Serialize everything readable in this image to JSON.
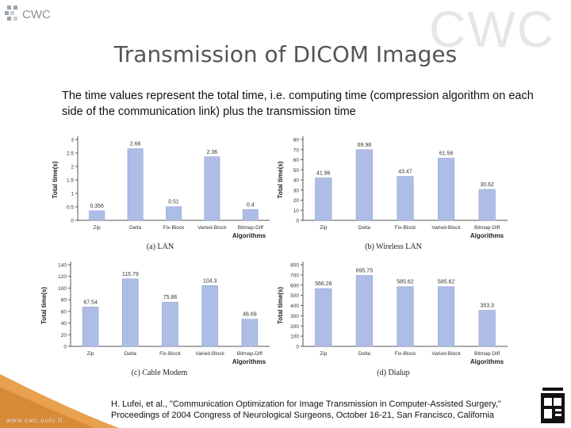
{
  "header": {
    "logo_text": "CWC",
    "watermark": "CWC",
    "title": "Transmission of DICOM Images",
    "subtitle": "The time values represent the total time, i.e. computing time (compression algorithm on each side of the communication link) plus the transmission time"
  },
  "footer": {
    "citation_line1": "H. Lufei, et al., \"Communication Optimization for Image Transmission in Computer-Assisted Surgery,\"",
    "citation_line2": "Proceedings of 2004 Congress of Neurological Surgeons, October 16-21, San Francisco, California",
    "site": "www.cwc.oulu.fi"
  },
  "colors": {
    "bar": "#aebde6",
    "bar_edge": "#8c9ccc",
    "axis": "#555555",
    "wave": "#e8a14f"
  },
  "chart_data": [
    {
      "type": "bar",
      "title": "(a) LAN",
      "xlabel": "Algorithms",
      "ylabel": "Total time(s)",
      "categories": [
        "Zip",
        "Delta",
        "Fix-Block",
        "Varied-Block",
        "Bitmap-Diff"
      ],
      "values": [
        0.356,
        2.66,
        0.51,
        2.36,
        0.4
      ],
      "value_labels": [
        "0.356",
        "2.66",
        "0.51",
        "2.36",
        "0.4"
      ],
      "ylim": [
        0,
        3
      ],
      "yticks": [
        "0",
        "0.5",
        "1",
        "1.5",
        "2",
        "2.5",
        "3"
      ],
      "grid": false
    },
    {
      "type": "bar",
      "title": "(b) Wireless LAN",
      "xlabel": "Algorithms",
      "ylabel": "Total time(s)",
      "categories": [
        "Zip",
        "Delta",
        "Fix-Block",
        "Varied-Block",
        "Bitmap-Diff"
      ],
      "values": [
        41.96,
        69.98,
        43.47,
        61.56,
        30.62
      ],
      "value_labels": [
        "41.96",
        "69.98",
        "43.47",
        "61.56",
        "30.62"
      ],
      "ylim": [
        0,
        80
      ],
      "yticks": [
        "0",
        "10",
        "20",
        "30",
        "40",
        "50",
        "60",
        "70",
        "80"
      ],
      "grid": false
    },
    {
      "type": "bar",
      "title": "(c) Cable Modem",
      "xlabel": "Algorithms",
      "ylabel": "Total time(s)",
      "categories": [
        "Zip",
        "Delta",
        "Fix-Block",
        "Varied-Block",
        "Bitmap-Diff"
      ],
      "values": [
        67.54,
        115.79,
        75.86,
        104.3,
        46.69
      ],
      "value_labels": [
        "67.54",
        "115.79",
        "75.86",
        "104.3",
        "46.69"
      ],
      "ylim": [
        0,
        140
      ],
      "yticks": [
        "0",
        "20",
        "40",
        "60",
        "80",
        "100",
        "120",
        "140"
      ],
      "grid": false
    },
    {
      "type": "bar",
      "title": "(d) Dialup",
      "xlabel": "Algorithms",
      "ylabel": "Total time(s)",
      "categories": [
        "Zip",
        "Delta",
        "Fix-Block",
        "Varied-Block",
        "Bitmap-Diff"
      ],
      "values": [
        566.26,
        695.75,
        585.62,
        585.62,
        353.3
      ],
      "value_labels": [
        "566.26",
        "695.75",
        "585.62",
        "585.62",
        "353.3"
      ],
      "ylim": [
        0,
        800
      ],
      "yticks": [
        "0",
        "100",
        "200",
        "300",
        "400",
        "500",
        "600",
        "700",
        "800"
      ],
      "grid": false
    }
  ]
}
